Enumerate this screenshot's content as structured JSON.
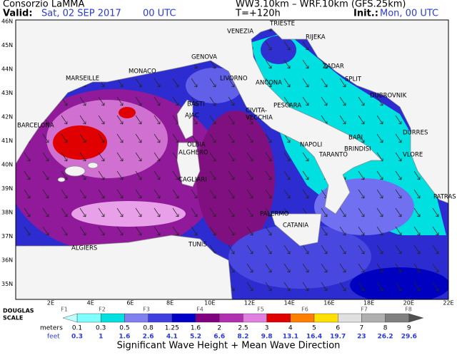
{
  "header": {
    "title": "Consorzio LaMMA",
    "valid_label": "Valid:",
    "valid_date": "Sat, 02 SEP 2017",
    "valid_time": "00 UTC",
    "model": "WW3.10km – WRF.10km (GFS.25km)",
    "lead": "T=+120h",
    "init_label": "Init.:",
    "init_value": "Mon, 00 UTC"
  },
  "map": {
    "lat_labels": [
      "46N",
      "45N",
      "44N",
      "43N",
      "42N",
      "41N",
      "40N",
      "39N",
      "38N",
      "37N",
      "36N",
      "35N"
    ],
    "lon_labels": [
      "2E",
      "4E",
      "6E",
      "8E",
      "10E",
      "12E",
      "14E",
      "16E",
      "18E",
      "20E",
      "22E"
    ],
    "cities": [
      "TRIESTE",
      "VENEZIA",
      "RIJEKA",
      "ZADAR",
      "SPLIT",
      "GENOVA",
      "MONACO",
      "MARSEILLE",
      "LIVORNO",
      "ANCONA",
      "DUBROVNIK",
      "BASTI",
      "PESCARA",
      "CIVITA-",
      "VECCHIA",
      "AJAC",
      "BARCELONA",
      "OLBIA",
      "BARI",
      "DURRES",
      "ALGHERO",
      "NAPOLI",
      "BRINDISI",
      "TARANTO",
      "VLORE",
      "CAGLIARI",
      "PATRAS",
      "PALERMO",
      "CATANIA",
      "TUNIS",
      "ALGIERS"
    ]
  },
  "legend": {
    "scale_title": [
      "DOUGLAS",
      "SCALE"
    ],
    "forces": [
      "F1",
      "F2",
      "F3",
      "F4",
      "F5",
      "F6",
      "F7",
      "F8"
    ],
    "meters_label": "meters",
    "meters": [
      "0.1",
      "0.3",
      "0.5",
      "0.8",
      "1.25",
      "1.6",
      "2",
      "2.5",
      "3",
      "4",
      "5",
      "6",
      "7",
      "8",
      "9"
    ],
    "feet_label": "feet",
    "feet": [
      "0.3",
      "1",
      "1.6",
      "2.6",
      "4.1",
      "5.2",
      "6.6",
      "8.2",
      "9.8",
      "13.1",
      "16.4",
      "19.7",
      "23",
      "26.2",
      "29.6"
    ],
    "colors": [
      "#80ffff",
      "#00e0e0",
      "#8080f0",
      "#4040e0",
      "#0000c8",
      "#800080",
      "#b030b0",
      "#e080e0",
      "#e00000",
      "#ff8000",
      "#ffe000",
      "#e0e0e0",
      "#b0b0b0",
      "#808080"
    ],
    "title": "Significant Wave Height + Mean Wave Direction"
  }
}
